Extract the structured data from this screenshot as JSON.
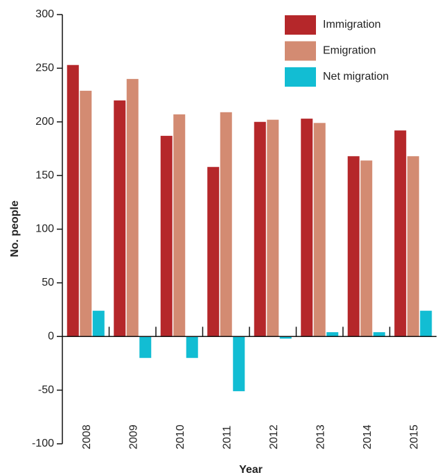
{
  "chart_data": {
    "type": "bar",
    "x_label": "Year",
    "y_label": "No. people",
    "categories": [
      "2008",
      "2009",
      "2010",
      "2011",
      "2012",
      "2013",
      "2014",
      "2015"
    ],
    "series": [
      {
        "name": "Immigration",
        "color": "#b5272a",
        "values": [
          253,
          220,
          187,
          158,
          200,
          203,
          168,
          192
        ]
      },
      {
        "name": "Emigration",
        "color": "#d38b72",
        "values": [
          229,
          240,
          207,
          209,
          202,
          199,
          164,
          168
        ]
      },
      {
        "name": "Net migration",
        "color": "#12bdd3",
        "values": [
          24,
          -20,
          -20,
          -51,
          -2,
          4,
          4,
          24
        ]
      }
    ],
    "ylim": [
      -100,
      300
    ],
    "yticks": [
      -100,
      -50,
      0,
      50,
      100,
      150,
      200,
      250,
      300
    ],
    "legend": "top-right"
  }
}
